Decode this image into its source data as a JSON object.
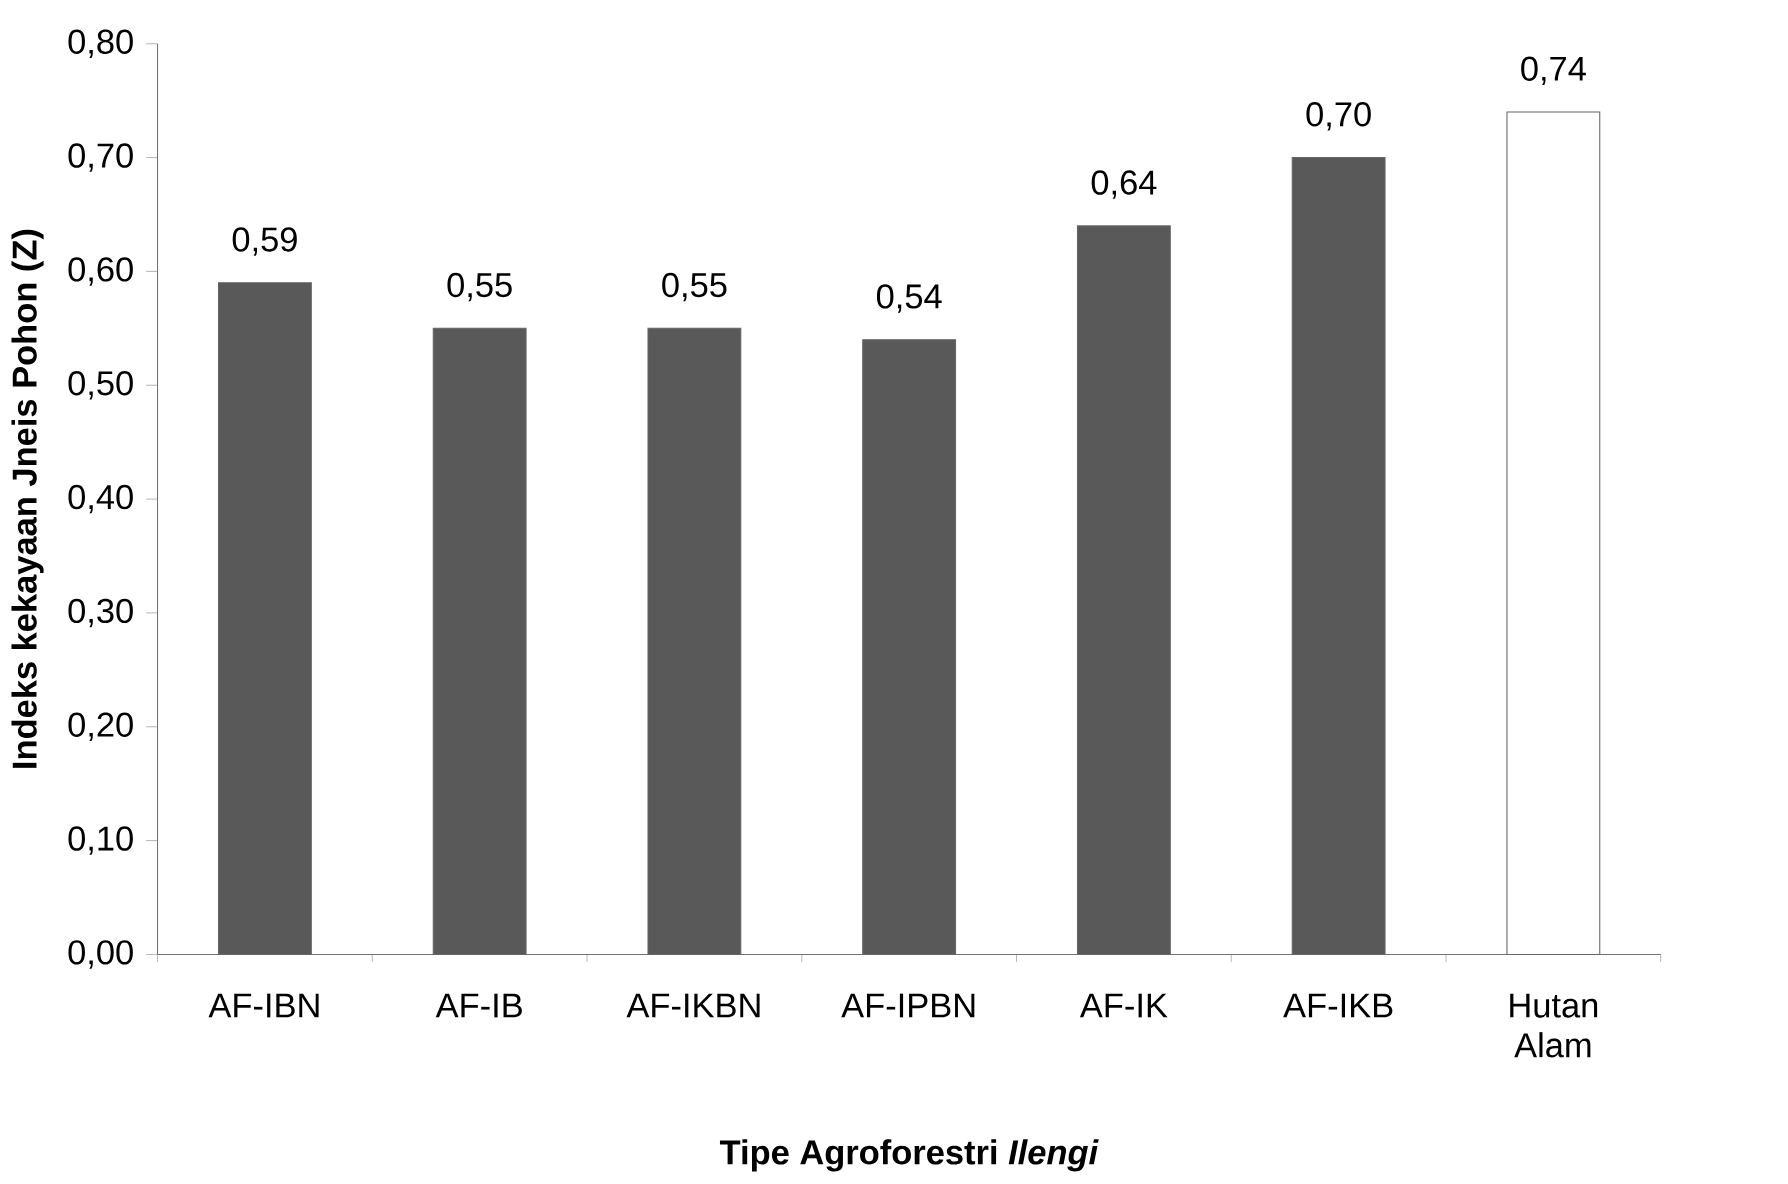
{
  "chart_data": {
    "type": "bar",
    "categories": [
      "AF-IBN",
      "AF-IB",
      "AF-IKBN",
      "AF-IPBN",
      "AF-IK",
      "AF-IKB",
      "Hutan Alam"
    ],
    "values": [
      0.59,
      0.55,
      0.55,
      0.54,
      0.64,
      0.7,
      0.74
    ],
    "value_labels": [
      "0,59",
      "0,55",
      "0,55",
      "0,54",
      "0,64",
      "0,70",
      "0,74"
    ],
    "colors": [
      "#595959",
      "#595959",
      "#595959",
      "#595959",
      "#595959",
      "#595959",
      "#ffffff"
    ],
    "xlabel": "Tipe Agroforestri *Ilengi*",
    "ylabel": "Indeks kekayaan Jneis Pohon (Z)",
    "ylim": [
      0,
      0.8
    ],
    "yticks": [
      {
        "value": 0,
        "label": "0,00"
      },
      {
        "value": 0.1,
        "label": "0,10"
      },
      {
        "value": 0.2,
        "label": "0,20"
      },
      {
        "value": 0.3,
        "label": "0,30"
      },
      {
        "value": 0.4,
        "label": "0,40"
      },
      {
        "value": 0.5,
        "label": "0,50"
      },
      {
        "value": 0.6,
        "label": "0,60"
      },
      {
        "value": 0.7,
        "label": "0,70"
      },
      {
        "value": 0.8,
        "label": "0,80"
      }
    ],
    "grid": false
  }
}
